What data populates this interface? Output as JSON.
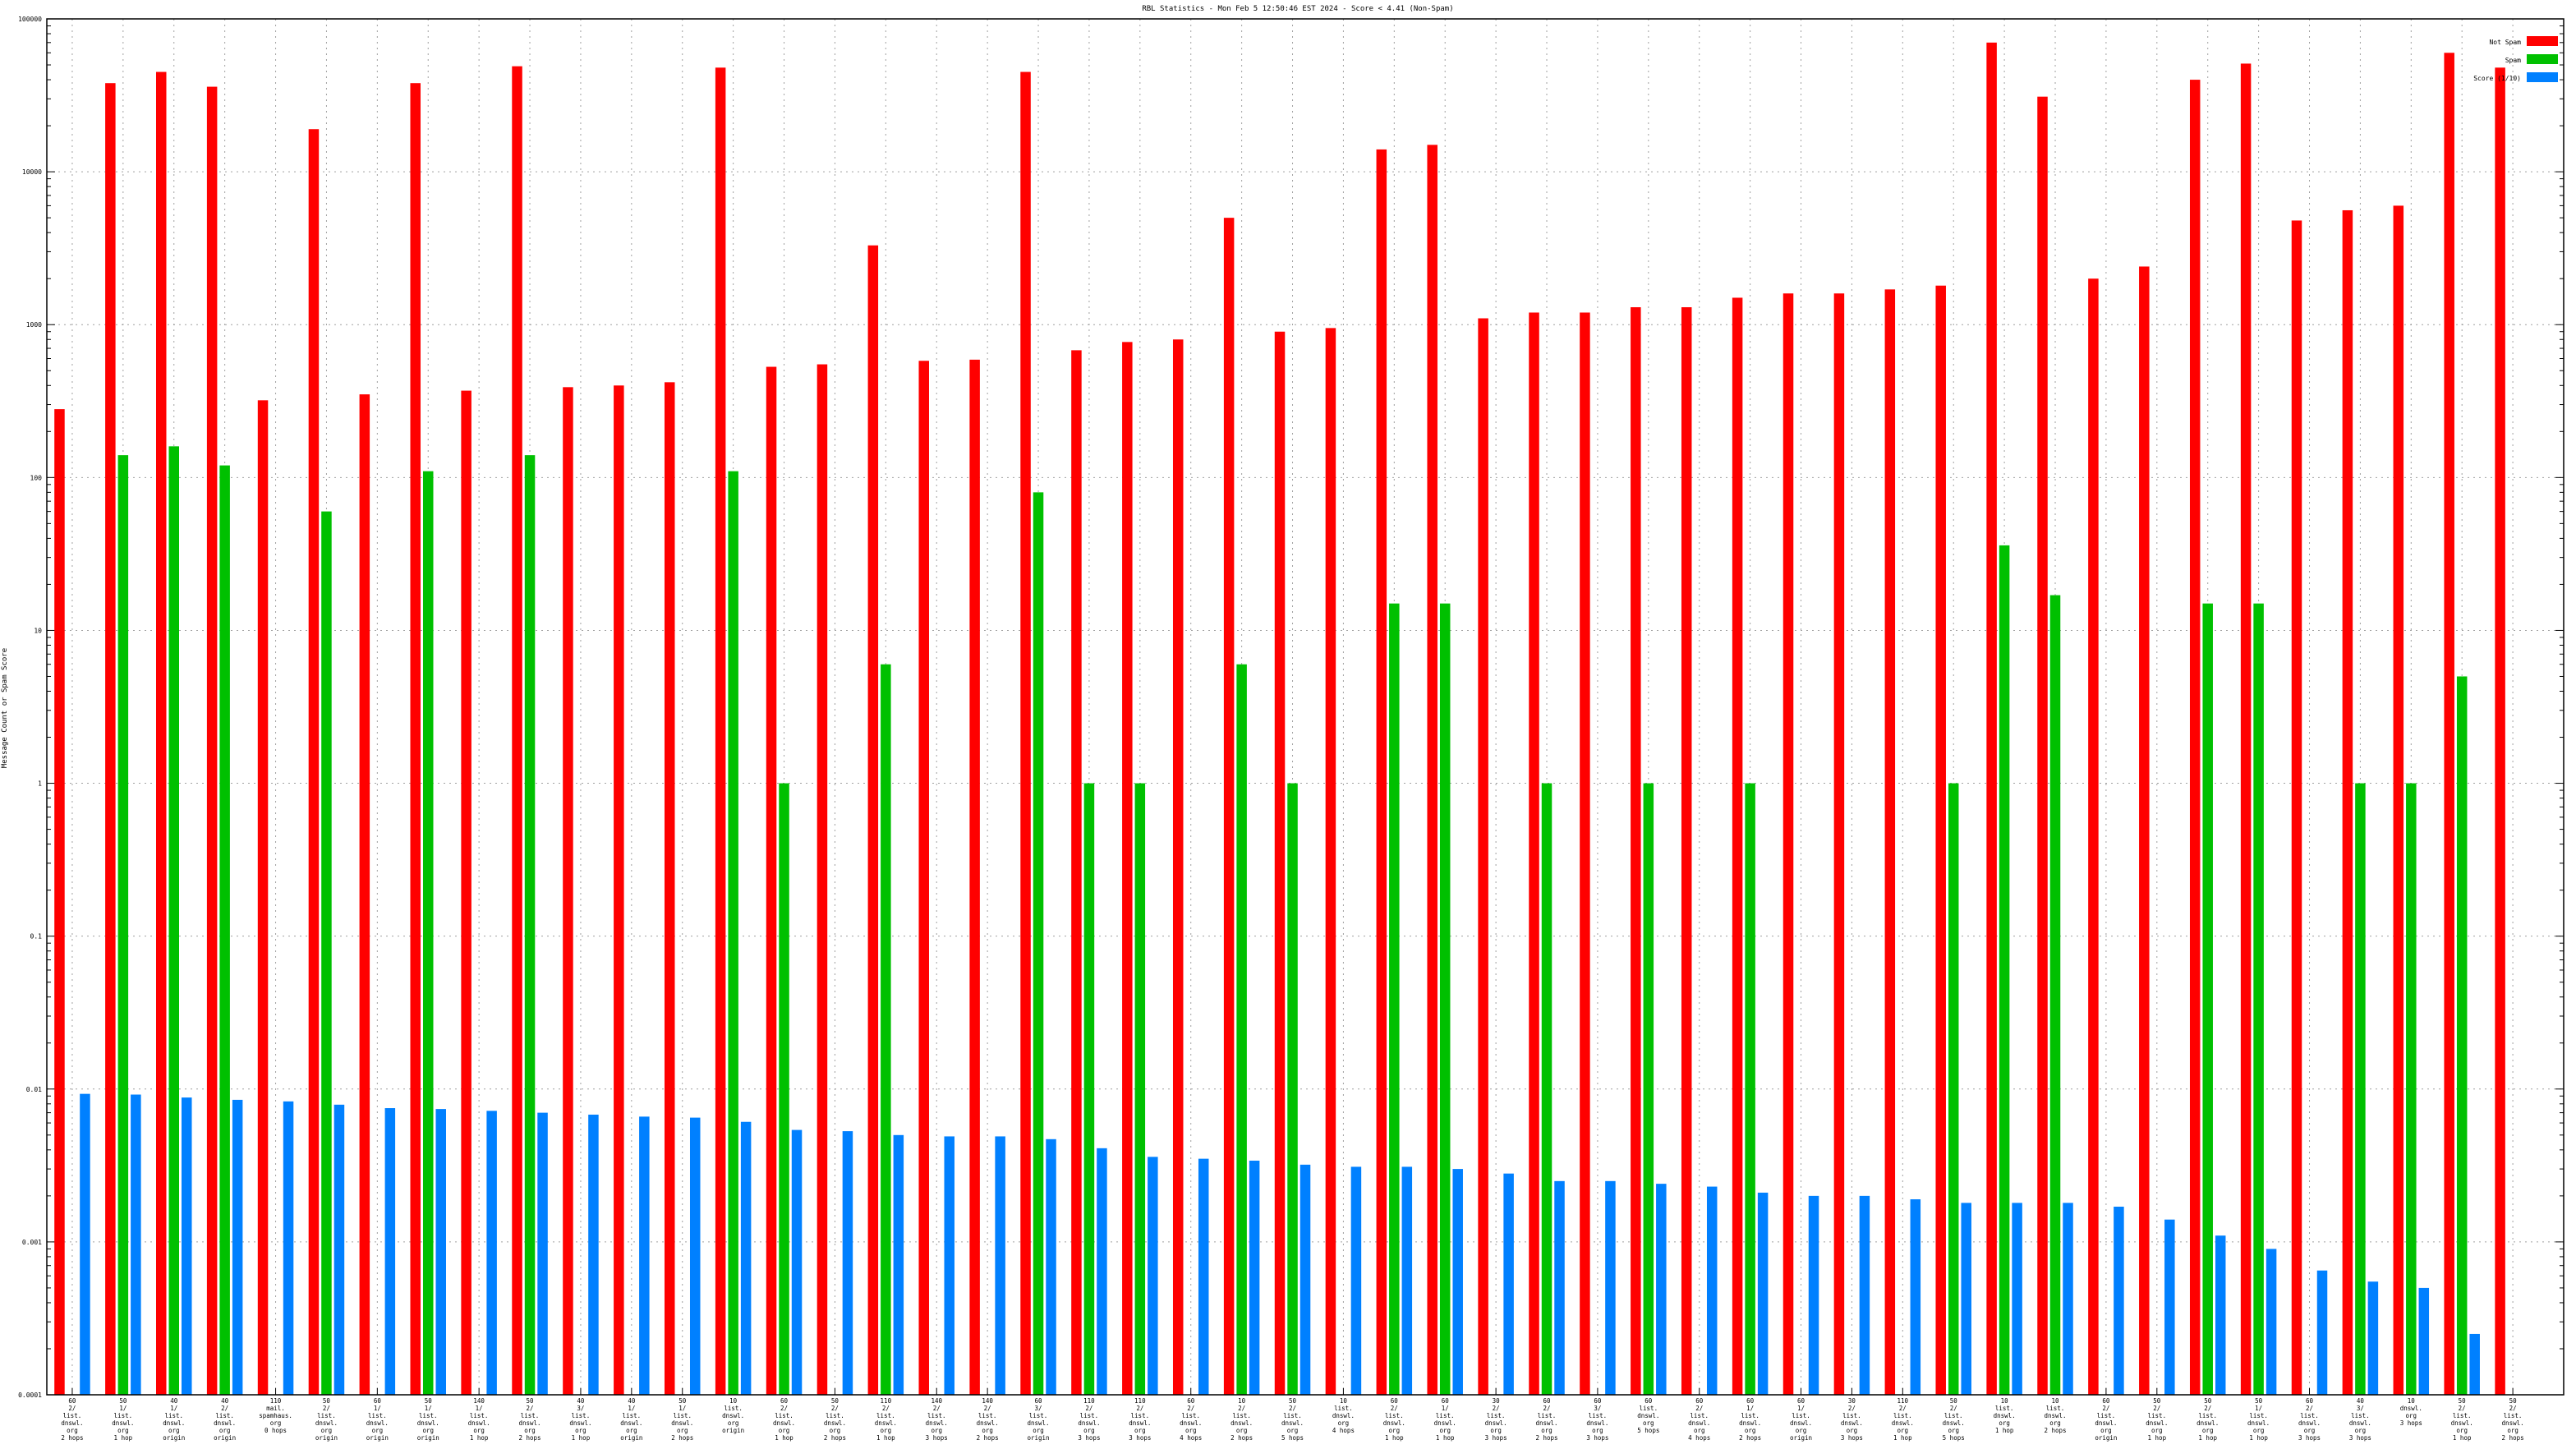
{
  "chart_data": {
    "type": "bar",
    "title": "RBL Statistics - Mon Feb  5 12:50:46 EST 2024 - Score < 4.41 (Non-Spam)",
    "xlabel": "",
    "ylabel": "Message Count or Spam Score",
    "scale": "log",
    "ylim": [
      0.0001,
      100000
    ],
    "yticks": [
      {
        "value": 0.0001,
        "label": "0.0001"
      },
      {
        "value": 0.001,
        "label": "0.001"
      },
      {
        "value": 0.01,
        "label": "0.01"
      },
      {
        "value": 0.1,
        "label": "0.1"
      },
      {
        "value": 1,
        "label": "1"
      },
      {
        "value": 10,
        "label": "10"
      },
      {
        "value": 100,
        "label": "100"
      },
      {
        "value": 1000,
        "label": "1000"
      },
      {
        "value": 10000,
        "label": "10000"
      },
      {
        "value": 100000,
        "label": "100000"
      }
    ],
    "grid": true,
    "legend_position": "top-right",
    "categories": [
      [
        "60",
        "2/",
        "list.",
        "dnswl.",
        "org",
        "2 hops"
      ],
      [
        "50",
        "1/",
        "list.",
        "dnswl.",
        "org",
        "1 hop"
      ],
      [
        "40",
        "1/",
        "list.",
        "dnswl.",
        "org",
        "origin"
      ],
      [
        "40",
        "2/",
        "list.",
        "dnswl.",
        "org",
        "origin"
      ],
      [
        "110",
        "mail.",
        "spamhaus.",
        "org",
        "0 hops"
      ],
      [
        "50",
        "2/",
        "list.",
        "dnswl.",
        "org",
        "origin"
      ],
      [
        "60",
        "1/",
        "list.",
        "dnswl.",
        "org",
        "origin"
      ],
      [
        "50",
        "1/",
        "list.",
        "dnswl.",
        "org",
        "origin"
      ],
      [
        "140",
        "1/",
        "list.",
        "dnswl.",
        "org",
        "1 hop"
      ],
      [
        "50",
        "2/",
        "list.",
        "dnswl.",
        "org",
        "2 hops"
      ],
      [
        "40",
        "3/",
        "list.",
        "dnswl.",
        "org",
        "1 hop"
      ],
      [
        "40",
        "1/",
        "list.",
        "dnswl.",
        "org",
        "origin"
      ],
      [
        "50",
        "1/",
        "list.",
        "dnswl.",
        "org",
        "2 hops"
      ],
      [
        "10",
        "list.",
        "dnswl.",
        "org",
        "origin"
      ],
      [
        "60",
        "2/",
        "list.",
        "dnswl.",
        "org",
        "1 hop"
      ],
      [
        "50",
        "2/",
        "list.",
        "dnswl.",
        "org",
        "2 hops"
      ],
      [
        "110",
        "2/",
        "list.",
        "dnswl.",
        "org",
        "1 hop"
      ],
      [
        "140",
        "2/",
        "list.",
        "dnswl.",
        "org",
        "3 hops"
      ],
      [
        "140",
        "2/",
        "list.",
        "dnswl.",
        "org",
        "2 hops"
      ],
      [
        "60",
        "3/",
        "list.",
        "dnswl.",
        "org",
        "origin"
      ],
      [
        "110",
        "2/",
        "list.",
        "dnswl.",
        "org",
        "3 hops"
      ],
      [
        "110",
        "2/",
        "list.",
        "dnswl.",
        "org",
        "3 hops"
      ],
      [
        "60",
        "2/",
        "list.",
        "dnswl.",
        "org",
        "4 hops"
      ],
      [
        "10",
        "2/",
        "list.",
        "dnswl.",
        "org",
        "2 hops"
      ],
      [
        "50",
        "2/",
        "list.",
        "dnswl.",
        "org",
        "5 hops"
      ],
      [
        "10",
        "list.",
        "dnswl.",
        "org",
        "4 hops"
      ],
      [
        "60",
        "2/",
        "list.",
        "dnswl.",
        "org",
        "1 hop"
      ],
      [
        "60",
        "1/",
        "list.",
        "dnswl.",
        "org",
        "1 hop"
      ],
      [
        "30",
        "2/",
        "list.",
        "dnswl.",
        "org",
        "3 hops"
      ],
      [
        "60",
        "2/",
        "list.",
        "dnswl.",
        "org",
        "2 hops"
      ],
      [
        "60",
        "3/",
        "list.",
        "dnswl.",
        "org",
        "3 hops"
      ],
      [
        "60",
        "list.",
        "dnswl.",
        "org",
        "5 hops"
      ],
      [
        "60",
        "2/",
        "list.",
        "dnswl.",
        "org",
        "4 hops"
      ],
      [
        "60",
        "1/",
        "list.",
        "dnswl.",
        "org",
        "2 hops"
      ],
      [
        "60",
        "1/",
        "list.",
        "dnswl.",
        "org",
        "origin"
      ],
      [
        "30",
        "2/",
        "list.",
        "dnswl.",
        "org",
        "3 hops"
      ],
      [
        "110",
        "2/",
        "list.",
        "dnswl.",
        "org",
        "1 hop"
      ],
      [
        "50",
        "2/",
        "list.",
        "dnswl.",
        "org",
        "5 hops"
      ],
      [
        "10",
        "list.",
        "dnswl.",
        "org",
        "1 hop"
      ],
      [
        "10",
        "list.",
        "dnswl.",
        "org",
        "2 hops"
      ],
      [
        "60",
        "2/",
        "list.",
        "dnswl.",
        "org",
        "origin"
      ],
      [
        "50",
        "2/",
        "list.",
        "dnswl.",
        "org",
        "1 hop"
      ],
      [
        "50",
        "2/",
        "list.",
        "dnswl.",
        "org",
        "1 hop"
      ],
      [
        "50",
        "1/",
        "list.",
        "dnswl.",
        "org",
        "1 hop"
      ],
      [
        "60",
        "2/",
        "list.",
        "dnswl.",
        "org",
        "3 hops"
      ],
      [
        "40",
        "3/",
        "list.",
        "dnswl.",
        "org",
        "3 hops"
      ],
      [
        "10",
        "dnswl.",
        "org",
        "3 hops"
      ],
      [
        "50",
        "2/",
        "list.",
        "dnswl.",
        "org",
        "1 hop"
      ],
      [
        "50",
        "2/",
        "list.",
        "dnswl.",
        "org",
        "2 hops"
      ]
    ],
    "series": [
      {
        "name": "Not Spam",
        "color": "#ff0000",
        "values": [
          280,
          38000,
          45000,
          36000,
          320,
          19000,
          350,
          38000,
          370,
          49000,
          390,
          400,
          420,
          48000,
          530,
          550,
          3300,
          580,
          590,
          45000,
          680,
          770,
          800,
          5000,
          900,
          950,
          14000,
          15000,
          1100,
          1200,
          1200,
          1300,
          1300,
          1500,
          1600,
          1600,
          1700,
          1800,
          70000,
          31000,
          2000,
          2400,
          40000,
          51000,
          4800,
          5600,
          6000,
          60000,
          48000
        ]
      },
      {
        "name": "Spam",
        "color": "#00c000",
        "values": [
          null,
          140,
          160,
          120,
          null,
          60,
          null,
          110,
          null,
          140,
          null,
          null,
          null,
          110,
          1,
          null,
          6,
          null,
          null,
          80,
          1,
          1,
          null,
          6,
          1,
          null,
          15,
          15,
          null,
          1,
          null,
          1,
          null,
          1,
          null,
          null,
          null,
          1,
          36,
          17,
          null,
          null,
          15,
          15,
          null,
          1,
          1,
          5,
          null
        ]
      },
      {
        "name": "Score (1/10)",
        "color": "#0080ff",
        "values": [
          0.0093,
          0.0092,
          0.0088,
          0.0085,
          0.0083,
          0.0079,
          0.0075,
          0.0074,
          0.0072,
          0.007,
          0.0068,
          0.0066,
          0.0065,
          0.0061,
          0.0054,
          0.0053,
          0.005,
          0.0049,
          0.0049,
          0.0047,
          0.0041,
          0.0036,
          0.0035,
          0.0034,
          0.0032,
          0.0031,
          0.0031,
          0.003,
          0.0028,
          0.0025,
          0.0025,
          0.0024,
          0.0023,
          0.0021,
          0.002,
          0.002,
          0.0019,
          0.0018,
          0.0018,
          0.0018,
          0.0017,
          0.0014,
          0.0011,
          0.0009,
          0.00065,
          0.00055,
          0.0005,
          0.00025,
          null
        ]
      }
    ]
  }
}
